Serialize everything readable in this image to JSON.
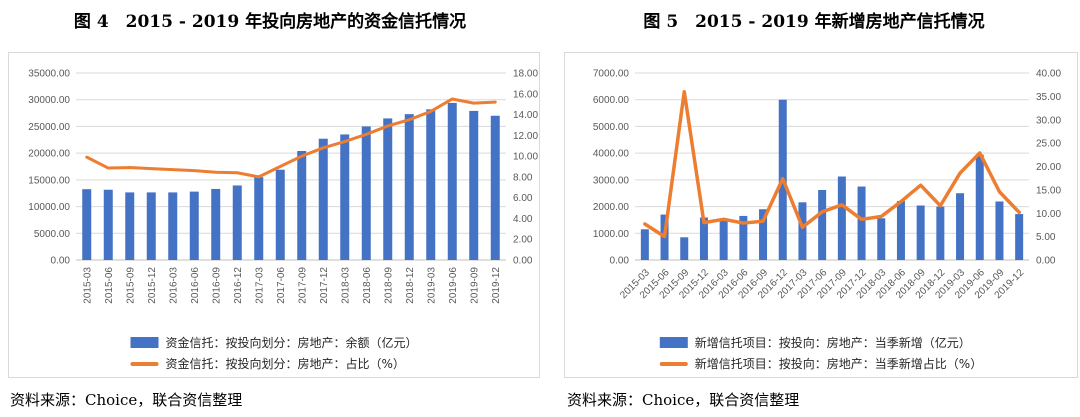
{
  "page": {
    "background": "#ffffff"
  },
  "colors": {
    "bar": "#4472C4",
    "line": "#ED7D31",
    "gridline": "#d9d9d9",
    "axis_line": "#bfbfbf",
    "tick_text": "#595959"
  },
  "figures": [
    {
      "id": "fig4",
      "title": "图 4　2015 - 2019 年投向房地产的资金信托情况",
      "source": "资料来源：Choice，联合资信整理",
      "legend": [
        {
          "label": "资金信托：按投向划分：房地产：余额（亿元）",
          "marker": "bar",
          "color": "#4472C4"
        },
        {
          "label": "资金信托：按投向划分：房地产：占比（%）",
          "marker": "line",
          "color": "#ED7D31"
        }
      ],
      "chart_data": {
        "type": "bar",
        "subtype": "combo-bar-line-dual-axis",
        "grid": "horizontal",
        "legend_position": "bottom",
        "categories": [
          "2015-03",
          "2015-06",
          "2015-09",
          "2015-12",
          "2016-03",
          "2016-06",
          "2016-09",
          "2016-12",
          "2017-03",
          "2017-06",
          "2017-09",
          "2017-12",
          "2018-03",
          "2018-06",
          "2018-09",
          "2018-12",
          "2019-03",
          "2019-06",
          "2019-09",
          "2019-12"
        ],
        "series": [
          {
            "name": "资金信托：按投向划分：房地产：余额（亿元）",
            "kind": "bar",
            "axis": "left",
            "color": "#4472C4",
            "values": [
              13250,
              13150,
              12650,
              12650,
              12650,
              12800,
              13300,
              13950,
              15500,
              16900,
              20400,
              22700,
              23500,
              25000,
              26500,
              27300,
              28200,
              29400,
              27900,
              27000
            ]
          },
          {
            "name": "资金信托：按投向划分：房地产：占比（%）",
            "kind": "line",
            "axis": "right",
            "color": "#ED7D31",
            "values": [
              9.9,
              8.85,
              8.9,
              8.8,
              8.7,
              8.6,
              8.45,
              8.4,
              8.0,
              9.0,
              10.0,
              10.8,
              11.4,
              12.1,
              12.9,
              13.5,
              14.3,
              15.5,
              15.1,
              15.2
            ]
          }
        ],
        "left_axis": {
          "min": 0,
          "max": 35000,
          "ticks": [
            "0.00",
            "5000.00",
            "10000.00",
            "15000.00",
            "20000.00",
            "25000.00",
            "30000.00",
            "35000.00"
          ]
        },
        "right_axis": {
          "min": 0,
          "max": 18,
          "ticks": [
            "0.00",
            "2.00",
            "4.00",
            "6.00",
            "8.00",
            "10.00",
            "12.00",
            "14.00",
            "16.00",
            "18.00"
          ]
        },
        "x_label_rotation": -90
      }
    },
    {
      "id": "fig5",
      "title": "图 5　2015 - 2019 年新增房地产信托情况",
      "source": "资料来源：Choice，联合资信整理",
      "legend": [
        {
          "label": "新增信托项目：按投向：房地产：当季新增（亿元）",
          "marker": "bar",
          "color": "#4472C4"
        },
        {
          "label": "新增信托项目：按投向：房地产：当季新增占比（%）",
          "marker": "line",
          "color": "#ED7D31"
        }
      ],
      "chart_data": {
        "type": "bar",
        "subtype": "combo-bar-line-dual-axis",
        "grid": "horizontal",
        "legend_position": "bottom",
        "categories": [
          "2015-03",
          "2015-06",
          "2015-09",
          "2015-12",
          "2016-03",
          "2016-06",
          "2016-09",
          "2016-12",
          "2017-03",
          "2017-06",
          "2017-09",
          "2017-12",
          "2018-03",
          "2018-06",
          "2018-09",
          "2018-12",
          "2019-03",
          "2019-06",
          "2019-09",
          "2019-12"
        ],
        "series": [
          {
            "name": "新增信托项目：按投向：房地产：当季新增（亿元）",
            "kind": "bar",
            "axis": "left",
            "color": "#4472C4",
            "values": [
              1150,
              1700,
              850,
              1590,
              1500,
              1650,
              1900,
              6000,
              2160,
              2620,
              3125,
              2750,
              1560,
              2210,
              2040,
              2000,
              2500,
              3940,
              2190,
              1720
            ]
          },
          {
            "name": "新增信托项目：按投向：房地产：当季新增占比（%）",
            "kind": "line",
            "axis": "right",
            "color": "#ED7D31",
            "values": [
              7.7,
              5.0,
              36.0,
              8.0,
              8.7,
              7.9,
              8.3,
              17.4,
              7.0,
              10.3,
              11.8,
              8.7,
              9.3,
              12.5,
              16.0,
              11.6,
              18.6,
              22.9,
              14.6,
              10.2
            ]
          }
        ],
        "left_axis": {
          "min": 0,
          "max": 7000,
          "ticks": [
            "0.00",
            "1000.00",
            "2000.00",
            "3000.00",
            "4000.00",
            "5000.00",
            "6000.00",
            "7000.00"
          ]
        },
        "right_axis": {
          "min": 0,
          "max": 40,
          "ticks": [
            "0.00",
            "5.00",
            "10.00",
            "15.00",
            "20.00",
            "25.00",
            "30.00",
            "35.00",
            "40.00"
          ]
        },
        "x_label_rotation": -45
      }
    }
  ]
}
